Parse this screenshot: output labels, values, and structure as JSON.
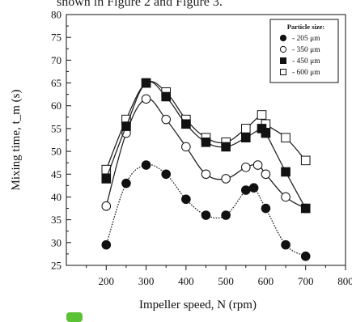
{
  "caption_text": "shown in Figure 2 and Figure 3.",
  "chart_data": {
    "type": "line",
    "title": "",
    "xlabel": "Impeller speed, N (rpm)",
    "ylabel": "Mixing time, t_m (s)",
    "xlim": [
      100,
      800
    ],
    "ylim": [
      25,
      80
    ],
    "xticks": [
      200,
      300,
      400,
      500,
      600,
      700,
      800
    ],
    "yticks": [
      25,
      30,
      35,
      40,
      45,
      50,
      55,
      60,
      65,
      70,
      75,
      80
    ],
    "grid": false,
    "legend": {
      "title": "Particle size:",
      "placement": "top-right"
    },
    "series": [
      {
        "name": "- 205 μm",
        "marker": "filled-circle",
        "points": [
          {
            "x": 200,
            "y": 29.5
          },
          {
            "x": 250,
            "y": 43
          },
          {
            "x": 300,
            "y": 47
          },
          {
            "x": 350,
            "y": 45
          },
          {
            "x": 400,
            "y": 39.5
          },
          {
            "x": 450,
            "y": 36
          },
          {
            "x": 500,
            "y": 36
          },
          {
            "x": 550,
            "y": 41.5
          },
          {
            "x": 570,
            "y": 42
          },
          {
            "x": 600,
            "y": 37.5
          },
          {
            "x": 650,
            "y": 29.5
          },
          {
            "x": 700,
            "y": 27
          }
        ]
      },
      {
        "name": "- 350 μm",
        "marker": "open-circle",
        "points": [
          {
            "x": 200,
            "y": 38
          },
          {
            "x": 250,
            "y": 54
          },
          {
            "x": 300,
            "y": 61.5
          },
          {
            "x": 350,
            "y": 57
          },
          {
            "x": 400,
            "y": 51
          },
          {
            "x": 450,
            "y": 45
          },
          {
            "x": 500,
            "y": 44
          },
          {
            "x": 550,
            "y": 46.5
          },
          {
            "x": 580,
            "y": 47
          },
          {
            "x": 600,
            "y": 45
          },
          {
            "x": 650,
            "y": 40
          },
          {
            "x": 700,
            "y": 37.5
          }
        ]
      },
      {
        "name": "- 450 μm",
        "marker": "filled-square",
        "points": [
          {
            "x": 200,
            "y": 44
          },
          {
            "x": 250,
            "y": 55.5
          },
          {
            "x": 300,
            "y": 65
          },
          {
            "x": 350,
            "y": 62
          },
          {
            "x": 400,
            "y": 56
          },
          {
            "x": 450,
            "y": 52
          },
          {
            "x": 500,
            "y": 51
          },
          {
            "x": 550,
            "y": 53
          },
          {
            "x": 590,
            "y": 55
          },
          {
            "x": 600,
            "y": 54
          },
          {
            "x": 650,
            "y": 45.5
          },
          {
            "x": 700,
            "y": 37.5
          }
        ]
      },
      {
        "name": "- 600 μm",
        "marker": "open-square",
        "points": [
          {
            "x": 200,
            "y": 46
          },
          {
            "x": 250,
            "y": 57
          },
          {
            "x": 300,
            "y": 65
          },
          {
            "x": 350,
            "y": 63
          },
          {
            "x": 400,
            "y": 57
          },
          {
            "x": 450,
            "y": 53
          },
          {
            "x": 500,
            "y": 52
          },
          {
            "x": 550,
            "y": 55
          },
          {
            "x": 590,
            "y": 58
          },
          {
            "x": 600,
            "y": 56
          },
          {
            "x": 650,
            "y": 53
          },
          {
            "x": 700,
            "y": 48
          }
        ]
      }
    ]
  }
}
